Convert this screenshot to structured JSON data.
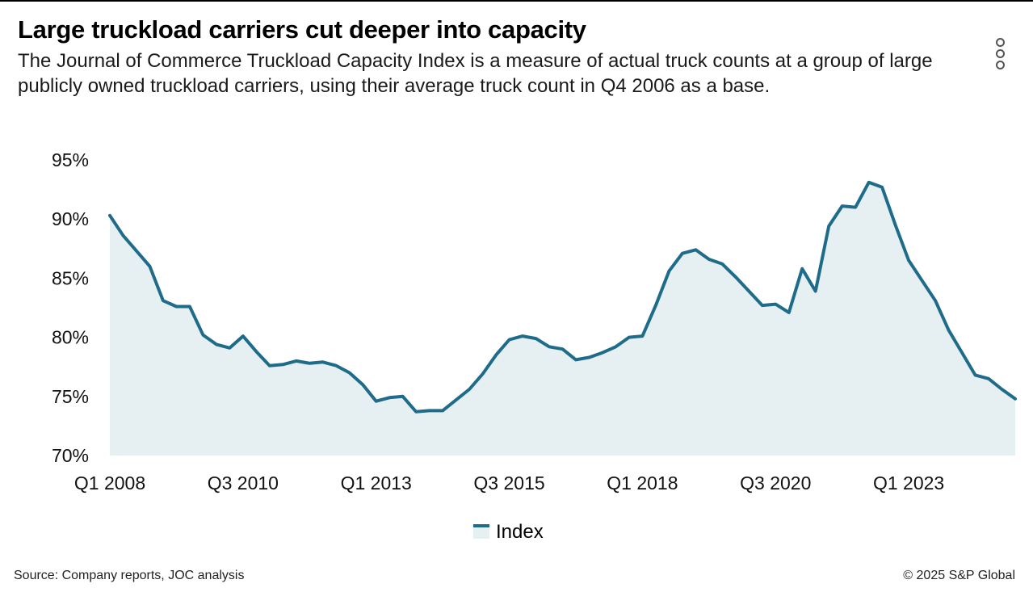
{
  "header": {
    "title": "Large truckload carriers cut deeper into capacity",
    "subtitle": "The Journal of Commerce Truckload Capacity Index is a measure of actual truck counts at a group of large publicly owned truckload carriers, using their average truck count in Q4 2006 as a base."
  },
  "menu": {
    "icon": "more-vert-icon"
  },
  "chart_data": {
    "type": "area",
    "title": "Large truckload carriers cut deeper into capacity",
    "xlabel": "",
    "ylabel": "",
    "ylim": [
      70,
      95
    ],
    "yticks": [
      70,
      75,
      80,
      85,
      90,
      95
    ],
    "ytick_labels": [
      "70%",
      "75%",
      "80%",
      "85%",
      "90%",
      "95%"
    ],
    "xtick_labels": [
      {
        "index": 0,
        "label": "Q1 2008"
      },
      {
        "index": 10,
        "label": "Q3 2010"
      },
      {
        "index": 20,
        "label": "Q1 2013"
      },
      {
        "index": 30,
        "label": "Q3 2015"
      },
      {
        "index": 40,
        "label": "Q1 2018"
      },
      {
        "index": 50,
        "label": "Q3 2020"
      },
      {
        "index": 60,
        "label": "Q1 2023"
      }
    ],
    "series": [
      {
        "name": "Index",
        "color": "#1f6b8a",
        "fill": "#e6eff2",
        "values": [
          90.3,
          88.6,
          87.3,
          86.0,
          83.1,
          82.6,
          82.6,
          80.2,
          79.4,
          79.1,
          80.1,
          78.8,
          77.6,
          77.7,
          78.0,
          77.8,
          77.9,
          77.6,
          77.0,
          76.0,
          74.6,
          74.9,
          75.0,
          73.7,
          73.8,
          73.8,
          74.7,
          75.6,
          76.9,
          78.5,
          79.8,
          80.1,
          79.9,
          79.2,
          79.0,
          78.1,
          78.3,
          78.7,
          79.2,
          80.0,
          80.1,
          82.7,
          85.6,
          87.1,
          87.4,
          86.6,
          86.2,
          85.1,
          83.9,
          82.7,
          82.8,
          82.1,
          85.8,
          83.9,
          89.4,
          91.1,
          91.0,
          93.1,
          92.7,
          89.5,
          86.5,
          84.8,
          83.1,
          80.6,
          78.7,
          76.8,
          76.5,
          75.6,
          74.8
        ]
      }
    ],
    "legend": "bottom-center"
  },
  "footer": {
    "source": "Source: Company reports, JOC analysis",
    "copyright": "© 2025 S&P Global"
  }
}
